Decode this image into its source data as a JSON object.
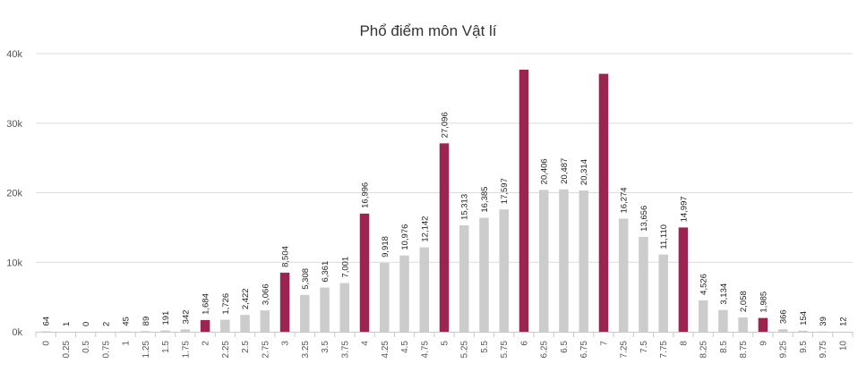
{
  "chart_data": {
    "type": "bar",
    "title": "Phổ điểm môn Vật lí",
    "xlabel": "",
    "ylabel": "",
    "ylim": [
      0,
      40000
    ],
    "yticks": [
      0,
      10000,
      20000,
      30000,
      40000
    ],
    "ytick_labels": [
      "0k",
      "10k",
      "20k",
      "30k",
      "40k"
    ],
    "grid": true,
    "legend": "none",
    "colors": {
      "normal": "#cccccc",
      "highlight": "#9b2450"
    },
    "categories": [
      "0",
      "0.25",
      "0.5",
      "0.75",
      "1",
      "1.25",
      "1.5",
      "1.75",
      "2",
      "2.25",
      "2.5",
      "2.75",
      "3",
      "3.25",
      "3.5",
      "3.75",
      "4",
      "4.25",
      "4.5",
      "4.75",
      "5",
      "5.25",
      "5.5",
      "5.75",
      "6",
      "6.25",
      "6.5",
      "6.75",
      "7",
      "7.25",
      "7.5",
      "7.75",
      "8",
      "8.25",
      "8.5",
      "8.75",
      "9",
      "9.25",
      "9.5",
      "9.75",
      "10"
    ],
    "values": [
      64,
      1,
      0,
      2,
      45,
      89,
      191,
      342,
      1684,
      1726,
      2422,
      3066,
      8504,
      5308,
      6361,
      7001,
      16996,
      9918,
      10976,
      12142,
      27096,
      15313,
      16385,
      17597,
      37700,
      20406,
      20487,
      20314,
      37100,
      16274,
      13656,
      11110,
      14997,
      4526,
      3134,
      2058,
      1985,
      366,
      154,
      39,
      12
    ],
    "data_labels": [
      "64",
      "1",
      "0",
      "2",
      "45",
      "89",
      "191",
      "342",
      "1,684",
      "1,726",
      "2,422",
      "3,066",
      "8,504",
      "5,308",
      "6,361",
      "7,001",
      "16,996",
      "9,918",
      "10,976",
      "12,142",
      "27,096",
      "15,313",
      "16,385",
      "17,597",
      "",
      "20,406",
      "20,487",
      "20,314",
      "",
      "16,274",
      "13,656",
      "11,110",
      "14,997",
      "4,526",
      "3,134",
      "2,058",
      "1,985",
      "366",
      "154",
      "39",
      "12"
    ],
    "highlighted_categories": [
      "2",
      "3",
      "4",
      "5",
      "6",
      "7",
      "8",
      "9"
    ]
  }
}
